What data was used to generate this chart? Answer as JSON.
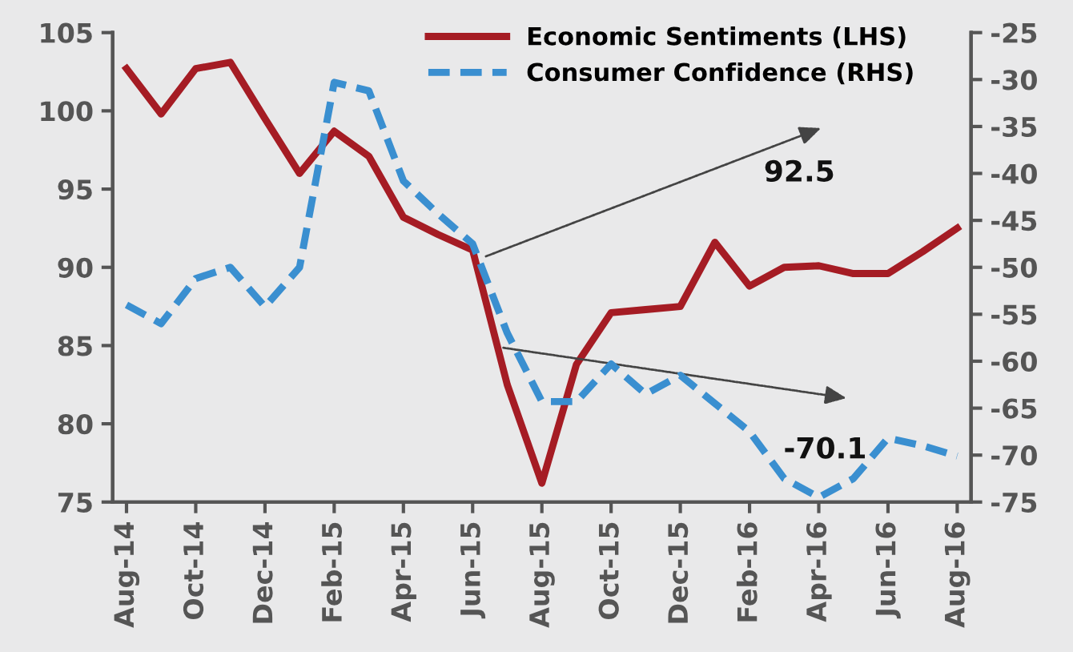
{
  "chart_data": {
    "type": "line",
    "categories": [
      "Aug-14",
      null,
      "Oct-14",
      null,
      "Dec-14",
      null,
      "Feb-15",
      null,
      "Apr-15",
      null,
      "Jun-15",
      null,
      "Aug-15",
      null,
      "Oct-15",
      null,
      "Dec-15",
      null,
      "Feb-16",
      null,
      "Apr-16",
      null,
      "Jun-16",
      null,
      "Aug-16"
    ],
    "series": [
      {
        "name": "Economic Sentiments (LHS)",
        "color": "#a51c24",
        "line_style": "solid",
        "values": [
          102.7,
          99.8,
          102.7,
          103.1,
          99.5,
          96.0,
          98.7,
          97.1,
          93.2,
          92.1,
          91.1,
          82.5,
          76.2,
          83.8,
          87.1,
          87.3,
          87.5,
          91.6,
          88.8,
          90.0,
          90.1,
          89.6,
          89.6,
          91.0,
          92.5
        ]
      },
      {
        "name": "Consumer Confidence (RHS)",
        "color": "#3a8fd0",
        "line_style": "dashed",
        "axis": "y2",
        "values": [
          -54.0,
          -56.0,
          -51.2,
          -50.0,
          -54.2,
          -50.0,
          -30.3,
          -31.2,
          -40.8,
          -44.3,
          -47.5,
          -57.0,
          -64.3,
          -64.3,
          -60.3,
          -63.5,
          -61.5,
          -64.5,
          -67.5,
          -72.5,
          -74.5,
          -72.5,
          -68.2,
          -69.0,
          -70.1
        ]
      }
    ],
    "ylim": [
      75,
      105
    ],
    "yticks": [
      75,
      80,
      85,
      90,
      95,
      100,
      105
    ],
    "y2lim": [
      -75,
      -25
    ],
    "y2ticks": [
      -75,
      -70,
      -65,
      -60,
      -55,
      -50,
      -45,
      -40,
      -35,
      -30,
      -25
    ],
    "annotations": [
      "92.5",
      "-70.1"
    ],
    "legend": "top right",
    "grid": false,
    "marker": "none"
  }
}
